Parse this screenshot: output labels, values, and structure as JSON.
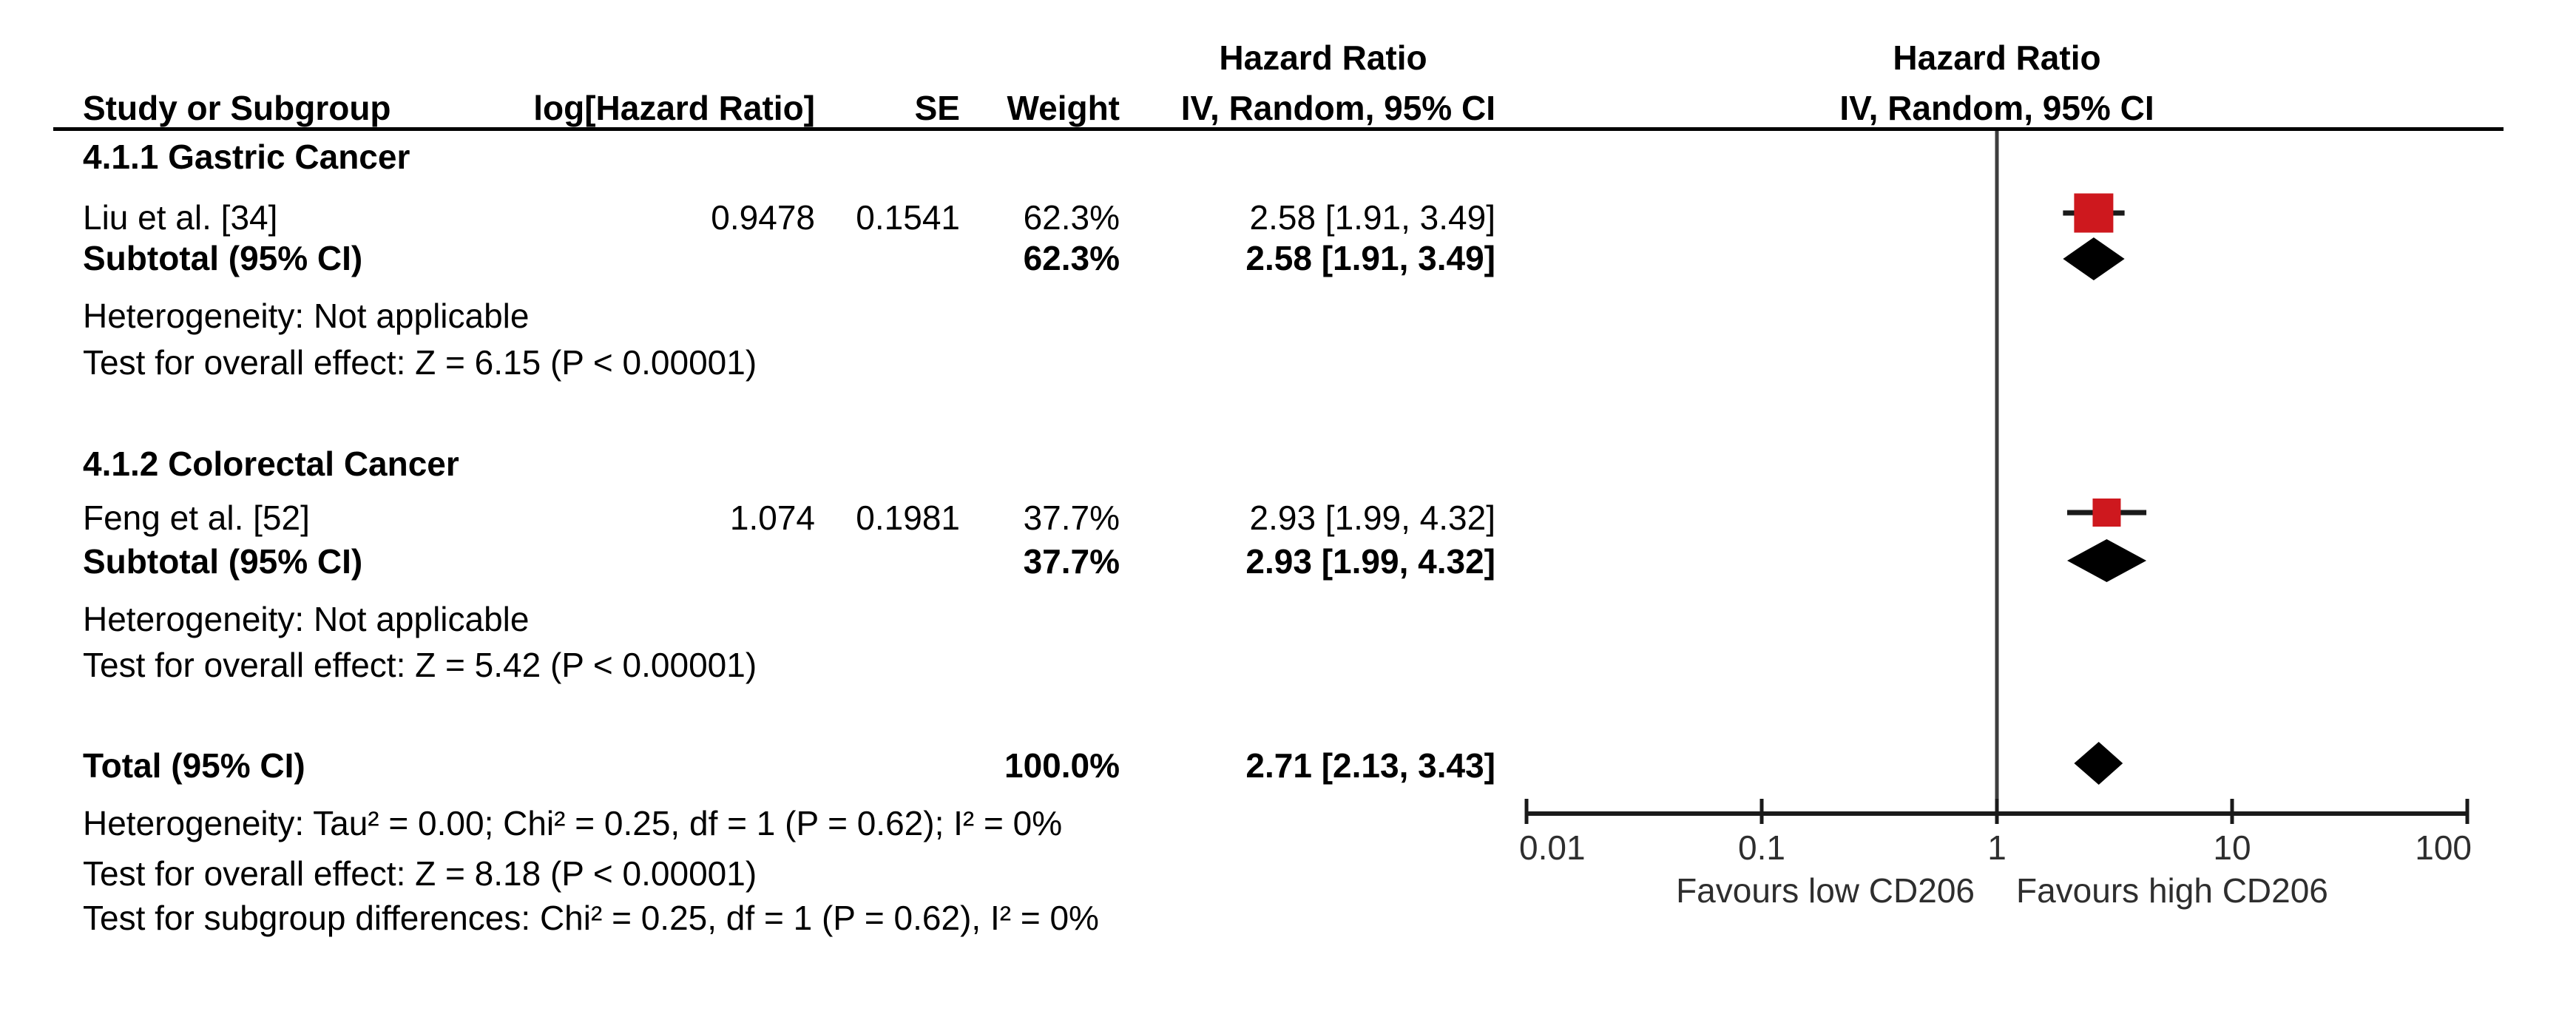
{
  "header": {
    "left_effect_title": "Hazard Ratio",
    "col_study": "Study or Subgroup",
    "col_loghr": "log[Hazard Ratio]",
    "col_se": "SE",
    "col_weight": "Weight",
    "col_ci": "IV, Random, 95% CI",
    "right_effect_title": "Hazard Ratio",
    "right_effect_subtitle": "IV, Random, 95% CI"
  },
  "groups": [
    {
      "title": "4.1.1 Gastric Cancer",
      "study": {
        "name": "Liu et al. [34]",
        "log_hr": "0.9478",
        "se": "0.1541",
        "weight": "62.3%",
        "estimate": "2.58 [1.91, 3.49]"
      },
      "subtotal": {
        "label": "Subtotal (95% CI)",
        "weight": "62.3%",
        "estimate": "2.58 [1.91, 3.49]"
      },
      "heterogeneity": "Heterogeneity: Not applicable",
      "overall_effect": "Test for overall effect: Z = 6.15 (P < 0.00001)"
    },
    {
      "title": "4.1.2 Colorectal Cancer",
      "study": {
        "name": "Feng et al. [52]",
        "log_hr": "1.074",
        "se": "0.1981",
        "weight": "37.7%",
        "estimate": "2.93 [1.99, 4.32]"
      },
      "subtotal": {
        "label": "Subtotal (95% CI)",
        "weight": "37.7%",
        "estimate": "2.93 [1.99, 4.32]"
      },
      "heterogeneity": "Heterogeneity: Not applicable",
      "overall_effect": "Test for overall effect: Z = 5.42 (P < 0.00001)"
    }
  ],
  "total": {
    "label": "Total (95% CI)",
    "weight": "100.0%",
    "estimate": "2.71 [2.13, 3.43]",
    "heterogeneity": "Heterogeneity: Tau² = 0.00; Chi² = 0.25, df = 1 (P = 0.62); I² = 0%",
    "overall_effect": "Test for overall effect: Z = 8.18 (P < 0.00001)",
    "subgroup_differences": "Test for subgroup differences: Chi² = 0.25, df = 1 (P = 0.62), I² = 0%"
  },
  "axis": {
    "tick_labels": [
      "0.01",
      "0.1",
      "1",
      "10",
      "100"
    ],
    "favours_left": "Favours low CD206",
    "favours_right": "Favours high CD206"
  },
  "colors": {
    "study_marker": "#ce181e",
    "diamond": "#000000",
    "ci_line": "#1a1a1a",
    "axis": "#1a1a1a",
    "null_line": "#3d3d3d",
    "axis_text": "#2e2e2e"
  },
  "chart_data": {
    "type": "forest",
    "effect_measure": "Hazard Ratio",
    "model": "IV, Random, 95% CI",
    "x_scale": "log10",
    "x_ticks": [
      0.01,
      0.1,
      1,
      10,
      100
    ],
    "xlim": [
      0.01,
      100
    ],
    "null_line": 1.0,
    "favours_left": "Favours low CD206",
    "favours_right": "Favours high CD206",
    "rows": [
      {
        "kind": "study",
        "label": "Liu et al. [34]",
        "group": "4.1.1 Gastric Cancer",
        "log_hr": 0.9478,
        "se": 0.1541,
        "hr": 2.58,
        "ci_low": 1.91,
        "ci_high": 3.49,
        "weight_pct": 62.3
      },
      {
        "kind": "subtotal",
        "label": "Subtotal (95% CI)",
        "group": "4.1.1 Gastric Cancer",
        "hr": 2.58,
        "ci_low": 1.91,
        "ci_high": 3.49,
        "weight_pct": 62.3
      },
      {
        "kind": "study",
        "label": "Feng et al. [52]",
        "group": "4.1.2 Colorectal Cancer",
        "log_hr": 1.074,
        "se": 0.1981,
        "hr": 2.93,
        "ci_low": 1.99,
        "ci_high": 4.32,
        "weight_pct": 37.7
      },
      {
        "kind": "subtotal",
        "label": "Subtotal (95% CI)",
        "group": "4.1.2 Colorectal Cancer",
        "hr": 2.93,
        "ci_low": 1.99,
        "ci_high": 4.32,
        "weight_pct": 37.7
      },
      {
        "kind": "total",
        "label": "Total (95% CI)",
        "hr": 2.71,
        "ci_low": 2.13,
        "ci_high": 3.43,
        "weight_pct": 100.0
      }
    ]
  }
}
